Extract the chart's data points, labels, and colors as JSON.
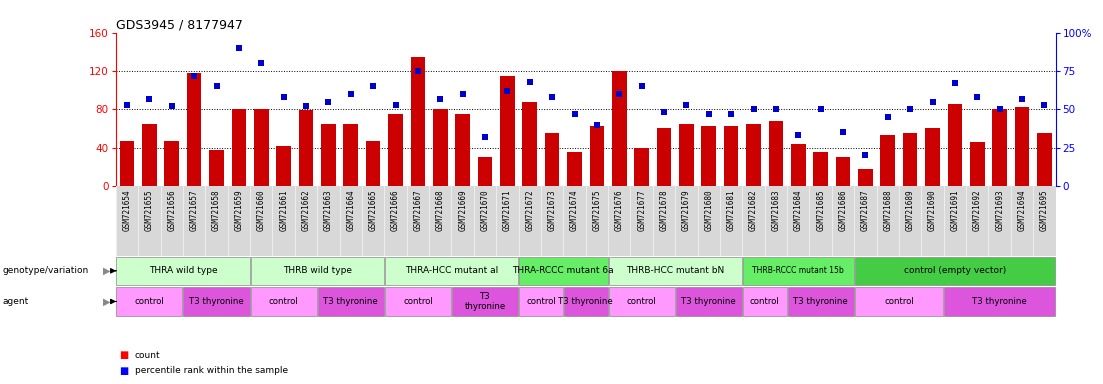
{
  "title": "GDS3945 / 8177947",
  "samples": [
    "GSM721654",
    "GSM721655",
    "GSM721656",
    "GSM721657",
    "GSM721658",
    "GSM721659",
    "GSM721660",
    "GSM721661",
    "GSM721662",
    "GSM721663",
    "GSM721664",
    "GSM721665",
    "GSM721666",
    "GSM721667",
    "GSM721668",
    "GSM721669",
    "GSM721670",
    "GSM721671",
    "GSM721672",
    "GSM721673",
    "GSM721674",
    "GSM721675",
    "GSM721676",
    "GSM721677",
    "GSM721678",
    "GSM721679",
    "GSM721680",
    "GSM721681",
    "GSM721682",
    "GSM721683",
    "GSM721684",
    "GSM721685",
    "GSM721686",
    "GSM721687",
    "GSM721688",
    "GSM721689",
    "GSM721690",
    "GSM721691",
    "GSM721692",
    "GSM721693",
    "GSM721694",
    "GSM721695"
  ],
  "counts": [
    47,
    65,
    47,
    118,
    37,
    80,
    80,
    42,
    79,
    65,
    65,
    47,
    75,
    135,
    80,
    75,
    30,
    115,
    88,
    55,
    35,
    63,
    120,
    40,
    60,
    65,
    63,
    63,
    65,
    68,
    44,
    35,
    30,
    18,
    53,
    55,
    60,
    85,
    46,
    80,
    82,
    55
  ],
  "percentiles": [
    53,
    57,
    52,
    72,
    65,
    90,
    80,
    58,
    52,
    55,
    60,
    65,
    53,
    75,
    57,
    60,
    32,
    62,
    68,
    58,
    47,
    40,
    60,
    65,
    48,
    53,
    47,
    47,
    50,
    50,
    33,
    50,
    35,
    20,
    45,
    50,
    55,
    67,
    58,
    50,
    57,
    53
  ],
  "ylim_left": [
    0,
    160
  ],
  "ylim_right": [
    0,
    100
  ],
  "left_yticks": [
    0,
    40,
    80,
    120,
    160
  ],
  "right_yticks": [
    0,
    25,
    50,
    75,
    100
  ],
  "bar_color": "#cc0000",
  "marker_color": "#0000cc",
  "genotype_groups": [
    {
      "label": "THRA wild type",
      "start": 0,
      "end": 6,
      "color": "#ccffcc"
    },
    {
      "label": "THRB wild type",
      "start": 6,
      "end": 12,
      "color": "#ccffcc"
    },
    {
      "label": "THRA-HCC mutant al",
      "start": 12,
      "end": 18,
      "color": "#ccffcc"
    },
    {
      "label": "THRA-RCCC mutant 6a",
      "start": 18,
      "end": 22,
      "color": "#66ee66"
    },
    {
      "label": "THRB-HCC mutant bN",
      "start": 22,
      "end": 28,
      "color": "#ccffcc"
    },
    {
      "label": "THRB-RCCC mutant 15b",
      "start": 28,
      "end": 33,
      "color": "#66ee66"
    },
    {
      "label": "control (empty vector)",
      "start": 33,
      "end": 42,
      "color": "#44cc44"
    }
  ],
  "agent_groups": [
    {
      "label": "control",
      "start": 0,
      "end": 3,
      "color": "#ff99ff"
    },
    {
      "label": "T3 thyronine",
      "start": 3,
      "end": 6,
      "color": "#dd55dd"
    },
    {
      "label": "control",
      "start": 6,
      "end": 9,
      "color": "#ff99ff"
    },
    {
      "label": "T3 thyronine",
      "start": 9,
      "end": 12,
      "color": "#dd55dd"
    },
    {
      "label": "control",
      "start": 12,
      "end": 15,
      "color": "#ff99ff"
    },
    {
      "label": "T3\nthyronine",
      "start": 15,
      "end": 18,
      "color": "#dd55dd"
    },
    {
      "label": "control",
      "start": 18,
      "end": 20,
      "color": "#ff99ff"
    },
    {
      "label": "T3 thyronine",
      "start": 20,
      "end": 22,
      "color": "#dd55dd"
    },
    {
      "label": "control",
      "start": 22,
      "end": 25,
      "color": "#ff99ff"
    },
    {
      "label": "T3 thyronine",
      "start": 25,
      "end": 28,
      "color": "#dd55dd"
    },
    {
      "label": "control",
      "start": 28,
      "end": 30,
      "color": "#ff99ff"
    },
    {
      "label": "T3 thyronine",
      "start": 30,
      "end": 33,
      "color": "#dd55dd"
    },
    {
      "label": "control",
      "start": 33,
      "end": 37,
      "color": "#ff99ff"
    },
    {
      "label": "T3 thyronine",
      "start": 37,
      "end": 42,
      "color": "#dd55dd"
    }
  ],
  "figure_width": 11.03,
  "figure_height": 3.84,
  "dpi": 100,
  "bg_color": "#ffffff",
  "xlabel_bg": "#d8d8d8",
  "geno_border_color": "#888888",
  "agent_border_color": "#888888"
}
